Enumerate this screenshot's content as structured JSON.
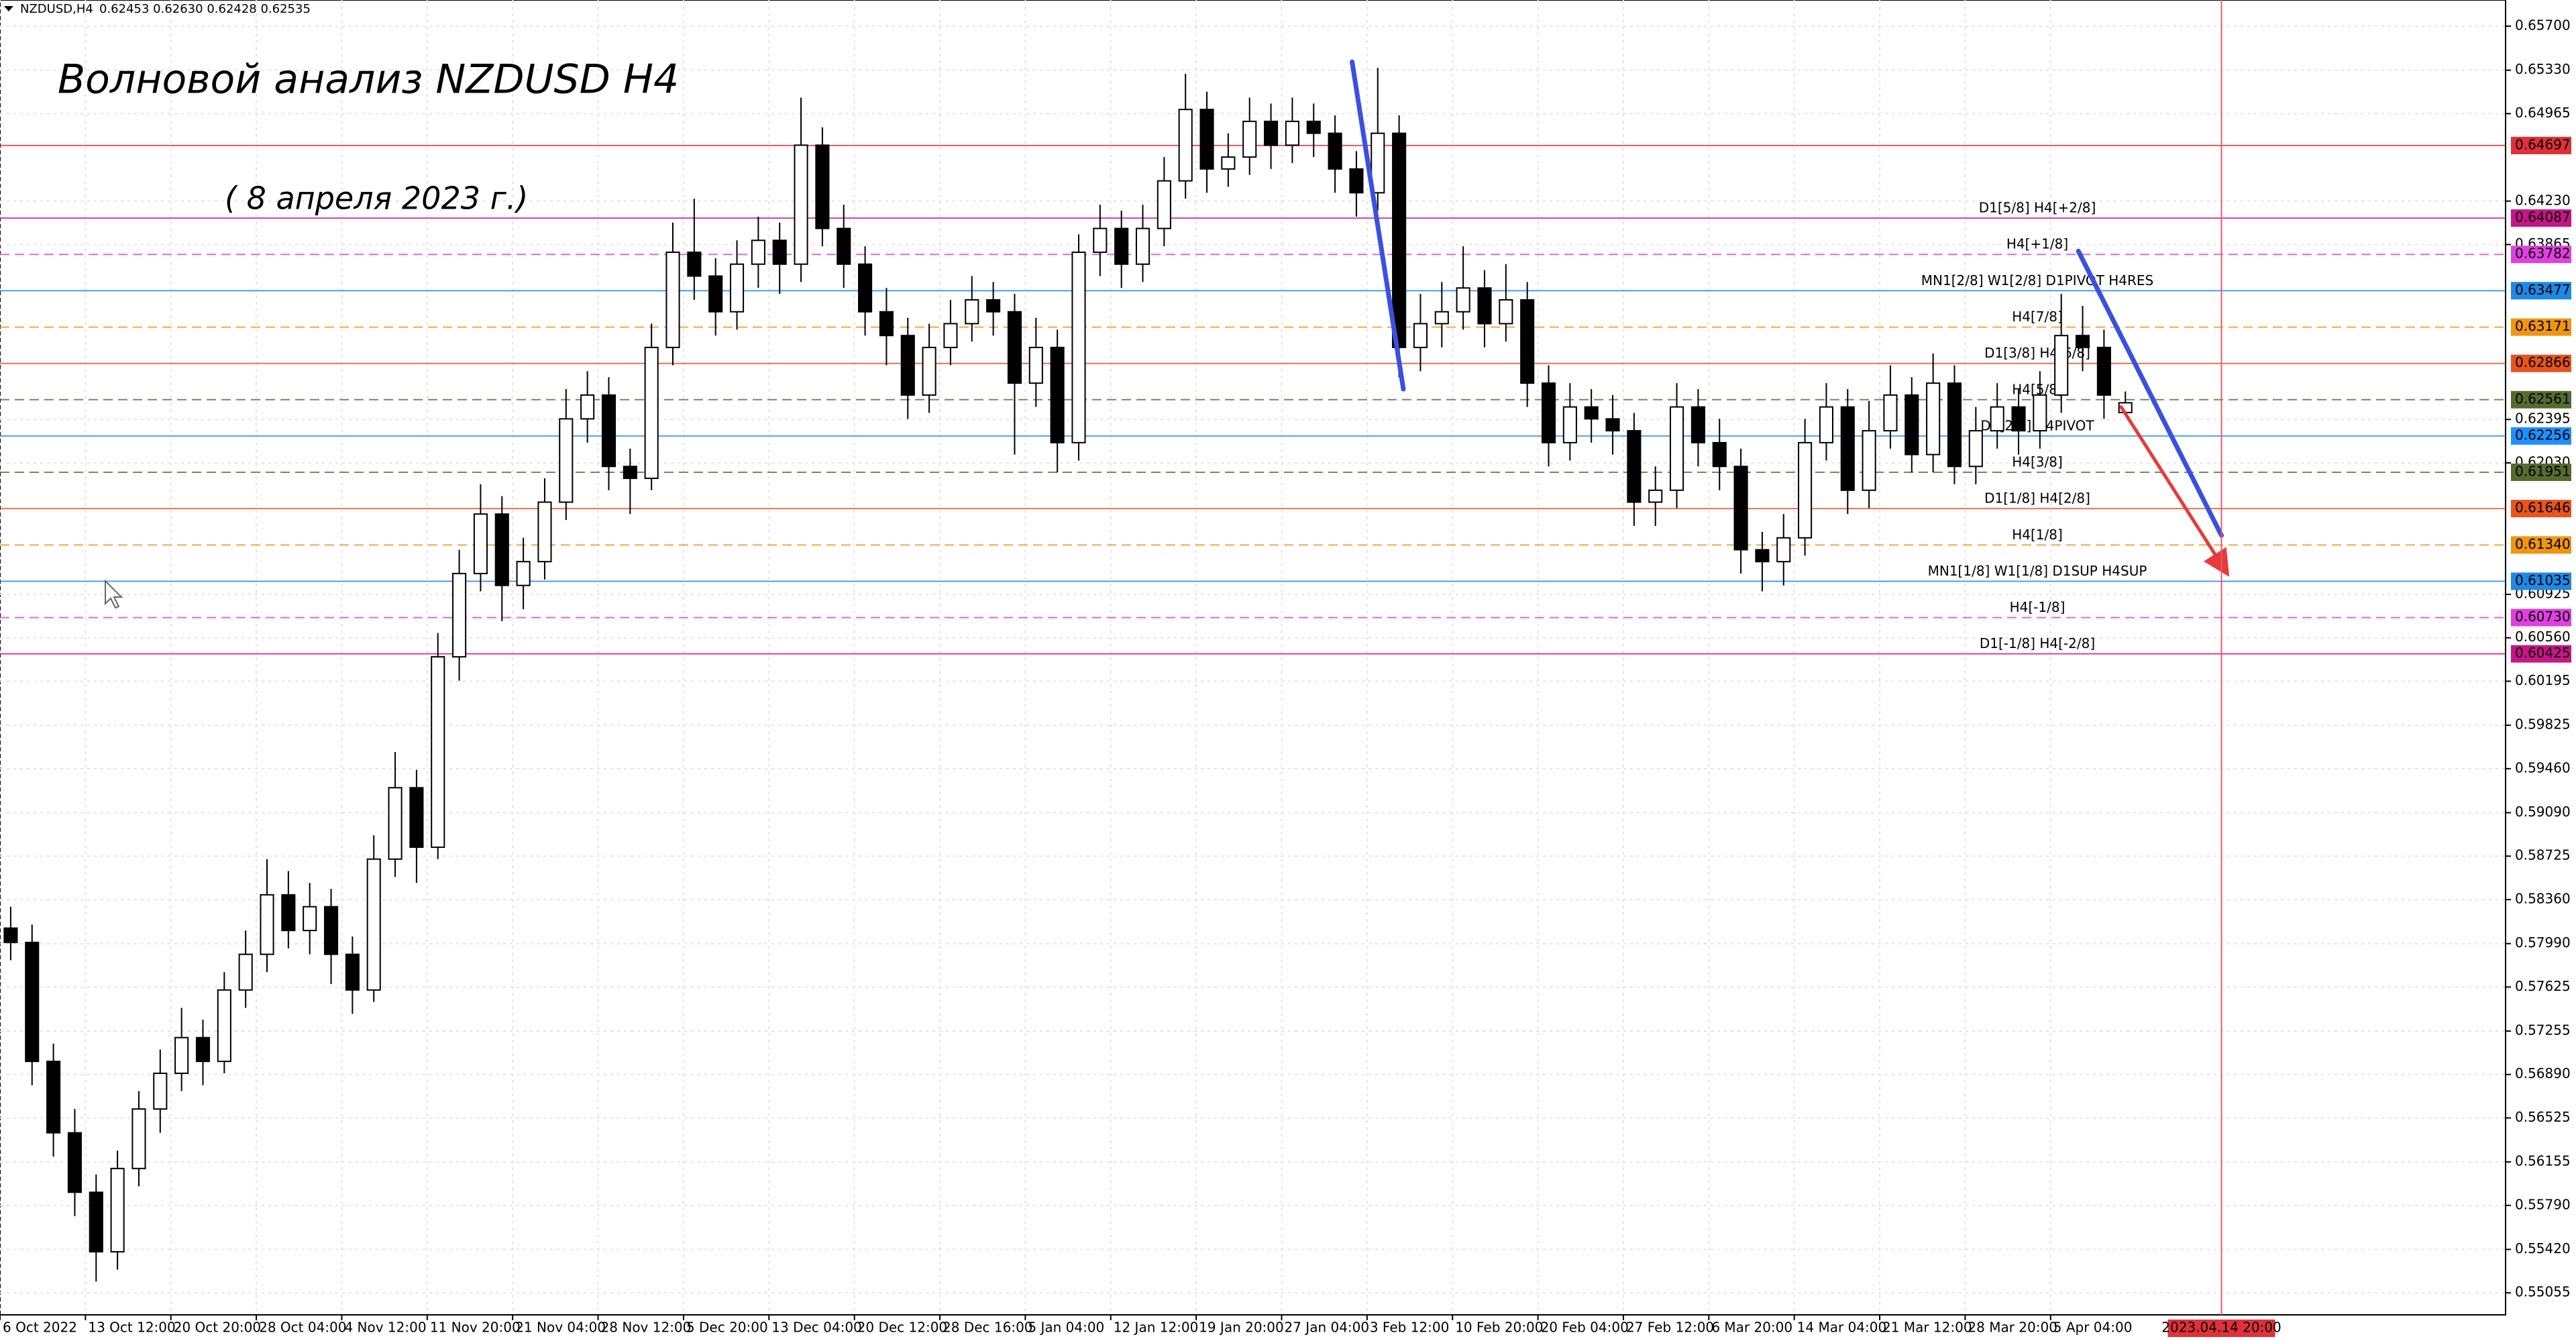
{
  "chart_data": {
    "type": "candlestick",
    "title": "Волновой анализ NZDUSD H4",
    "subtitle": "( 8 апреля 2023 г.)",
    "symbol": "NZDUSD,H4",
    "header_prices": "0.62453 0.62630 0.62428 0.62535",
    "cursor_label": "2023.04.14 20:00",
    "categories": [
      "6 Oct 2022",
      null,
      null,
      null,
      "13 Oct 12:00",
      null,
      null,
      null,
      "20 Oct 20:00",
      null,
      null,
      null,
      "28 Oct 04:00",
      null,
      null,
      null,
      "4 Nov 12:00",
      null,
      null,
      null,
      "11 Nov 20:00",
      null,
      null,
      null,
      "21 Nov 04:00",
      null,
      null,
      null,
      "28 Nov 12:00",
      null,
      null,
      null,
      "5 Dec 20:00",
      null,
      null,
      null,
      "13 Dec 04:00",
      null,
      null,
      null,
      "20 Dec 12:00",
      null,
      null,
      null,
      "28 Dec 16:00",
      null,
      null,
      null,
      "5 Jan 04:00",
      null,
      null,
      null,
      "12 Jan 12:00",
      null,
      null,
      null,
      "19 Jan 20:00",
      null,
      null,
      null,
      "27 Jan 04:00",
      null,
      null,
      null,
      "3 Feb 12:00",
      null,
      null,
      null,
      "10 Feb 20:00",
      null,
      null,
      null,
      "20 Feb 04:00",
      null,
      null,
      null,
      "27 Feb 12:00",
      null,
      null,
      null,
      "6 Mar 20:00",
      null,
      null,
      null,
      "14 Mar 04:00",
      null,
      null,
      null,
      "21 Mar 12:00",
      null,
      null,
      null,
      "28 Mar 20:00",
      null,
      null,
      null,
      "5 Apr 04:00",
      null,
      null,
      null
    ],
    "open": [
      0.5812,
      0.58,
      0.57,
      0.564,
      0.559,
      0.554,
      0.561,
      0.566,
      0.569,
      0.572,
      0.57,
      0.576,
      0.579,
      0.584,
      0.581,
      0.583,
      0.579,
      0.576,
      0.587,
      0.593,
      0.588,
      0.604,
      0.611,
      0.616,
      0.61,
      0.612,
      0.617,
      0.624,
      0.626,
      0.62,
      0.619,
      0.63,
      0.638,
      0.636,
      0.633,
      0.637,
      0.639,
      0.637,
      0.647,
      0.64,
      0.637,
      0.633,
      0.631,
      0.626,
      0.63,
      0.632,
      0.634,
      0.633,
      0.627,
      0.63,
      0.622,
      0.638,
      0.64,
      0.637,
      0.64,
      0.644,
      0.65,
      0.645,
      0.646,
      0.649,
      0.647,
      0.649,
      0.648,
      0.645,
      0.643,
      0.648,
      0.63,
      0.632,
      0.633,
      0.635,
      0.632,
      0.634,
      0.627,
      0.622,
      0.625,
      0.624,
      0.623,
      0.617,
      0.618,
      0.625,
      0.622,
      0.62,
      0.613,
      0.612,
      0.614,
      0.622,
      0.625,
      0.618,
      0.623,
      0.626,
      0.621,
      0.627,
      0.62,
      0.623,
      0.625,
      0.623,
      0.626,
      0.631,
      0.63,
      0.62453
    ],
    "high": [
      0.583,
      0.5815,
      0.5715,
      0.566,
      0.5605,
      0.5625,
      0.5675,
      0.571,
      0.5745,
      0.5735,
      0.5775,
      0.581,
      0.587,
      0.586,
      0.585,
      0.5845,
      0.5805,
      0.589,
      0.596,
      0.5945,
      0.606,
      0.613,
      0.6185,
      0.6175,
      0.614,
      0.619,
      0.6265,
      0.628,
      0.6275,
      0.6215,
      0.632,
      0.6405,
      0.6425,
      0.6375,
      0.639,
      0.641,
      0.6405,
      0.651,
      0.6485,
      0.642,
      0.6385,
      0.635,
      0.6325,
      0.632,
      0.634,
      0.636,
      0.6355,
      0.6345,
      0.6325,
      0.6315,
      0.6395,
      0.642,
      0.6415,
      0.642,
      0.646,
      0.653,
      0.6515,
      0.648,
      0.651,
      0.6505,
      0.651,
      0.6505,
      0.6495,
      0.6465,
      0.6535,
      0.6495,
      0.6345,
      0.6355,
      0.6385,
      0.6365,
      0.637,
      0.6355,
      0.6285,
      0.627,
      0.6265,
      0.626,
      0.6245,
      0.62,
      0.627,
      0.6265,
      0.624,
      0.6215,
      0.6145,
      0.616,
      0.624,
      0.627,
      0.6265,
      0.6255,
      0.6285,
      0.6275,
      0.6295,
      0.6285,
      0.625,
      0.627,
      0.6265,
      0.628,
      0.6345,
      0.6335,
      0.6315,
      0.6263
    ],
    "low": [
      0.5785,
      0.568,
      0.562,
      0.557,
      0.5515,
      0.5525,
      0.5595,
      0.564,
      0.5675,
      0.568,
      0.569,
      0.5745,
      0.5775,
      0.5795,
      0.579,
      0.5765,
      0.574,
      0.575,
      0.5855,
      0.585,
      0.587,
      0.602,
      0.6095,
      0.607,
      0.608,
      0.6105,
      0.6155,
      0.622,
      0.618,
      0.616,
      0.618,
      0.6285,
      0.634,
      0.631,
      0.6315,
      0.635,
      0.6345,
      0.6355,
      0.6385,
      0.635,
      0.631,
      0.6285,
      0.624,
      0.6245,
      0.6285,
      0.6305,
      0.631,
      0.621,
      0.625,
      0.6195,
      0.6205,
      0.636,
      0.635,
      0.6355,
      0.6385,
      0.6425,
      0.643,
      0.6435,
      0.6445,
      0.645,
      0.6455,
      0.646,
      0.643,
      0.641,
      0.6415,
      0.6275,
      0.628,
      0.63,
      0.6315,
      0.63,
      0.6305,
      0.625,
      0.62,
      0.6205,
      0.622,
      0.621,
      0.615,
      0.615,
      0.6165,
      0.62,
      0.618,
      0.611,
      0.6095,
      0.61,
      0.6125,
      0.6205,
      0.616,
      0.6165,
      0.6215,
      0.6195,
      0.6195,
      0.6185,
      0.6185,
      0.6215,
      0.621,
      0.6215,
      0.6245,
      0.628,
      0.624,
      0.62428
    ],
    "close": [
      0.58,
      0.57,
      0.564,
      0.559,
      0.554,
      0.561,
      0.566,
      0.569,
      0.572,
      0.57,
      0.576,
      0.579,
      0.584,
      0.581,
      0.583,
      0.579,
      0.576,
      0.587,
      0.593,
      0.588,
      0.604,
      0.611,
      0.616,
      0.61,
      0.612,
      0.617,
      0.624,
      0.626,
      0.62,
      0.619,
      0.63,
      0.638,
      0.636,
      0.633,
      0.637,
      0.639,
      0.637,
      0.647,
      0.64,
      0.637,
      0.633,
      0.631,
      0.626,
      0.63,
      0.632,
      0.634,
      0.633,
      0.627,
      0.63,
      0.622,
      0.638,
      0.64,
      0.637,
      0.64,
      0.644,
      0.65,
      0.645,
      0.646,
      0.649,
      0.647,
      0.649,
      0.648,
      0.645,
      0.643,
      0.648,
      0.63,
      0.632,
      0.633,
      0.635,
      0.632,
      0.634,
      0.627,
      0.622,
      0.625,
      0.624,
      0.623,
      0.617,
      0.618,
      0.625,
      0.622,
      0.62,
      0.613,
      0.612,
      0.614,
      0.622,
      0.625,
      0.618,
      0.623,
      0.626,
      0.621,
      0.627,
      0.62,
      0.623,
      0.625,
      0.623,
      0.626,
      0.631,
      0.63,
      0.626,
      0.62535
    ],
    "ylim": [
      0.5487,
      0.6592
    ],
    "yticks": [
      {
        "value": 0.657,
        "label": "0.65700"
      },
      {
        "value": 0.6533,
        "label": "0.65330"
      },
      {
        "value": 0.64965,
        "label": "0.64965"
      },
      {
        "value": 0.6423,
        "label": "0.64230"
      },
      {
        "value": 0.63865,
        "label": "0.63865"
      },
      {
        "value": 0.62395,
        "label": "0.62395"
      },
      {
        "value": 0.6203,
        "label": "0.62030"
      },
      {
        "value": 0.60925,
        "label": "0.60925"
      },
      {
        "value": 0.6056,
        "label": "0.60560"
      },
      {
        "value": 0.60195,
        "label": "0.60195"
      },
      {
        "value": 0.59825,
        "label": "0.59825"
      },
      {
        "value": 0.5946,
        "label": "0.59460"
      },
      {
        "value": 0.5909,
        "label": "0.59090"
      },
      {
        "value": 0.58725,
        "label": "0.58725"
      },
      {
        "value": 0.5836,
        "label": "0.58360"
      },
      {
        "value": 0.5799,
        "label": "0.57990"
      },
      {
        "value": 0.57625,
        "label": "0.57625"
      },
      {
        "value": 0.57255,
        "label": "0.57255"
      },
      {
        "value": 0.5689,
        "label": "0.56890"
      },
      {
        "value": 0.56525,
        "label": "0.56525"
      },
      {
        "value": 0.56155,
        "label": "0.56155"
      },
      {
        "value": 0.5579,
        "label": "0.55790"
      },
      {
        "value": 0.5542,
        "label": "0.55420"
      },
      {
        "value": 0.55055,
        "label": "0.55055"
      }
    ],
    "grid": true,
    "levels": [
      {
        "value": 0.64697,
        "price_label": "0.64697",
        "color": "#e0303a",
        "dashed": false
      },
      {
        "value": 0.64087,
        "price_label": "0.64087",
        "name": "D1[5/8] H4[+2/8]",
        "color": "#c71585",
        "dashed": false
      },
      {
        "value": 0.63782,
        "price_label": "0.63782",
        "name": "H4[+1/8]",
        "color": "#e040e0",
        "dashed": true
      },
      {
        "value": 0.63477,
        "price_label": "0.63477",
        "name": "MN1[2/8] W1[2/8] D1PIVOT H4RES",
        "color": "#1e88e5",
        "dashed": false
      },
      {
        "value": 0.63171,
        "price_label": "0.63171",
        "name": "H4[7/8]",
        "color": "#f0960e",
        "dashed": true
      },
      {
        "value": 0.62866,
        "price_label": "0.62866",
        "name": "D1[3/8] H4[6/8]",
        "color": "#e8541c",
        "dashed": false
      },
      {
        "value": 0.62561,
        "price_label": "0.62561",
        "name": "H4[5/8]",
        "color": "#556b2f",
        "dashed": true
      },
      {
        "value": 0.62256,
        "price_label": "0.62256",
        "name": "D1[2/8] H4PIVOT",
        "color": "#1e90ff",
        "dashed": false
      },
      {
        "value": 0.61951,
        "price_label": "0.61951",
        "name": "H4[3/8]",
        "color": "#556b2f",
        "dashed": true
      },
      {
        "value": 0.61646,
        "price_label": "0.61646",
        "name": "D1[1/8] H4[2/8]",
        "color": "#e8541c",
        "dashed": false
      },
      {
        "value": 0.6134,
        "price_label": "0.61340",
        "name": "H4[1/8]",
        "color": "#f0960e",
        "dashed": true
      },
      {
        "value": 0.61035,
        "price_label": "0.61035",
        "name": "MN1[1/8] W1[1/8] D1SUP H4SUP",
        "color": "#1e88e5",
        "dashed": false
      },
      {
        "value": 0.6073,
        "price_label": "0.60730",
        "name": "H4[-1/8]",
        "color": "#e040e0",
        "dashed": true
      },
      {
        "value": 0.60425,
        "price_label": "0.60425",
        "name": "D1[-1/8] H4[-2/8]",
        "color": "#c71585",
        "dashed": false
      }
    ],
    "trend_lines": [
      {
        "x": [
          62.8,
          65.2
        ],
        "y": [
          0.654,
          0.6265
        ],
        "color": "#3a50e0",
        "arrow": false
      },
      {
        "x": [
          96.8,
          103.5
        ],
        "y": [
          0.6381,
          0.6142
        ],
        "color": "#3a50e0",
        "arrow": false
      },
      {
        "x": [
          98.8,
          103.7
        ],
        "y": [
          0.625,
          0.6112
        ],
        "color": "#e83a3a",
        "arrow": true
      }
    ]
  }
}
